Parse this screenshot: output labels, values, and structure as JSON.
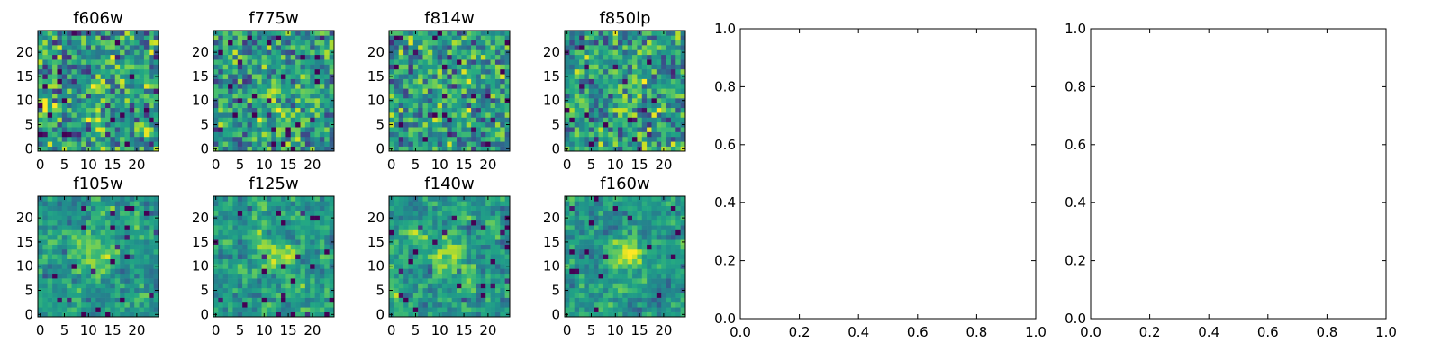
{
  "chart_data": [
    {
      "type": "heatmap",
      "title": "f606w",
      "xticks": [
        "0",
        "5",
        "10",
        "15",
        "20"
      ],
      "yticks": [
        "0",
        "5",
        "10",
        "15",
        "20"
      ],
      "xlim": [
        -0.5,
        24.5
      ],
      "ylim": [
        -0.5,
        24.5
      ],
      "colormap": "viridis",
      "grid": false,
      "source_position": [
        12,
        12
      ]
    },
    {
      "type": "heatmap",
      "title": "f775w",
      "xticks": [
        "0",
        "5",
        "10",
        "15",
        "20"
      ],
      "yticks": [
        "0",
        "5",
        "10",
        "15",
        "20"
      ],
      "xlim": [
        -0.5,
        24.5
      ],
      "ylim": [
        -0.5,
        24.5
      ],
      "colormap": "viridis",
      "grid": false,
      "source_position": [
        12,
        12
      ]
    },
    {
      "type": "heatmap",
      "title": "f814w",
      "xticks": [
        "0",
        "5",
        "10",
        "15",
        "20"
      ],
      "yticks": [
        "0",
        "5",
        "10",
        "15",
        "20"
      ],
      "xlim": [
        -0.5,
        24.5
      ],
      "ylim": [
        -0.5,
        24.5
      ],
      "colormap": "viridis",
      "grid": false,
      "source_position": [
        12,
        12
      ]
    },
    {
      "type": "heatmap",
      "title": "f850lp",
      "xticks": [
        "0",
        "5",
        "10",
        "15",
        "20"
      ],
      "yticks": [
        "0",
        "5",
        "10",
        "15",
        "20"
      ],
      "xlim": [
        -0.5,
        24.5
      ],
      "ylim": [
        -0.5,
        24.5
      ],
      "colormap": "viridis",
      "grid": false,
      "source_position": [
        12,
        12
      ]
    },
    {
      "type": "heatmap",
      "title": "f105w",
      "xticks": [
        "0",
        "5",
        "10",
        "15",
        "20"
      ],
      "yticks": [
        "0",
        "5",
        "10",
        "15",
        "20"
      ],
      "xlim": [
        -0.5,
        24.5
      ],
      "ylim": [
        -0.5,
        24.5
      ],
      "colormap": "viridis",
      "grid": false,
      "source_position": [
        12,
        12
      ]
    },
    {
      "type": "heatmap",
      "title": "f125w",
      "xticks": [
        "0",
        "5",
        "10",
        "15",
        "20"
      ],
      "yticks": [
        "0",
        "5",
        "10",
        "15",
        "20"
      ],
      "xlim": [
        -0.5,
        24.5
      ],
      "ylim": [
        -0.5,
        24.5
      ],
      "colormap": "viridis",
      "grid": false,
      "source_position": [
        12,
        12
      ]
    },
    {
      "type": "heatmap",
      "title": "f140w",
      "xticks": [
        "0",
        "5",
        "10",
        "15",
        "20"
      ],
      "yticks": [
        "0",
        "5",
        "10",
        "15",
        "20"
      ],
      "xlim": [
        -0.5,
        24.5
      ],
      "ylim": [
        -0.5,
        24.5
      ],
      "colormap": "viridis",
      "grid": false,
      "source_position": [
        12,
        12
      ]
    },
    {
      "type": "heatmap",
      "title": "f160w",
      "xticks": [
        "0",
        "5",
        "10",
        "15",
        "20"
      ],
      "yticks": [
        "0",
        "5",
        "10",
        "15",
        "20"
      ],
      "xlim": [
        -0.5,
        24.5
      ],
      "ylim": [
        -0.5,
        24.5
      ],
      "colormap": "viridis",
      "grid": false,
      "source_position": [
        12,
        12
      ]
    },
    {
      "type": "line",
      "title": "",
      "series": [],
      "xlim": [
        0,
        1
      ],
      "ylim": [
        0,
        1
      ],
      "xticks": [
        "0.0",
        "0.2",
        "0.4",
        "0.6",
        "0.8",
        "1.0"
      ],
      "yticks": [
        "0.0",
        "0.2",
        "0.4",
        "0.6",
        "0.8",
        "1.0"
      ],
      "grid": false
    },
    {
      "type": "line",
      "title": "",
      "series": [],
      "xlim": [
        0,
        1
      ],
      "ylim": [
        0,
        1
      ],
      "xticks": [
        "0.0",
        "0.2",
        "0.4",
        "0.6",
        "0.8",
        "1.0"
      ],
      "yticks": [
        "0.0",
        "0.2",
        "0.4",
        "0.6",
        "0.8",
        "1.0"
      ],
      "grid": false
    }
  ]
}
